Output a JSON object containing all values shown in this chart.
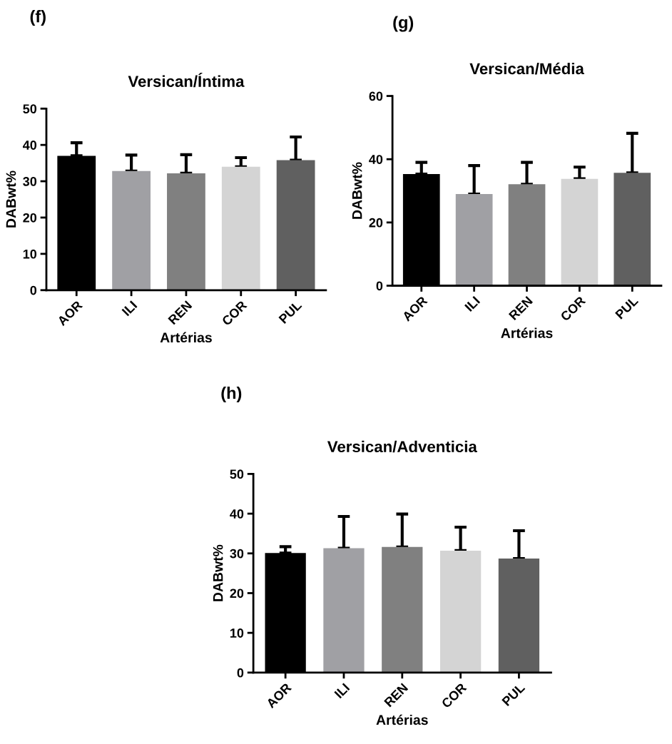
{
  "chart_data": [
    {
      "type": "bar",
      "title": "Versican/Íntima",
      "xlabel": "Artérias",
      "ylabel": "DABwt%",
      "annotations": [
        "(f)"
      ],
      "categories": [
        "AOR",
        "ILI",
        "REN",
        "COR",
        "PUL"
      ],
      "values": [
        37,
        32.8,
        32.2,
        34,
        35.8
      ],
      "colors": [
        "#000000",
        "#a0a0a4",
        "#808080",
        "#d4d4d4",
        "#606060"
      ],
      "errors": [
        [
          37,
          40.6
        ],
        [
          32.8,
          37.2
        ],
        [
          32.2,
          37.3
        ],
        [
          34,
          36.5
        ],
        [
          35.8,
          42.2
        ]
      ],
      "ylim": [
        0,
        50
      ],
      "yticks": [
        0,
        10,
        20,
        30,
        40,
        50
      ],
      "grid": false,
      "legend": false
    },
    {
      "type": "bar",
      "title": "Versican/Média",
      "xlabel": "Artérias",
      "ylabel": "DABwt%",
      "annotations": [
        "(g)"
      ],
      "categories": [
        "AOR",
        "ILI",
        "REN",
        "COR",
        "PUL"
      ],
      "values": [
        35.3,
        29,
        32.1,
        33.8,
        35.7
      ],
      "colors": [
        "#000000",
        "#a0a0a4",
        "#808080",
        "#d4d4d4",
        "#606060"
      ],
      "errors": [
        [
          35.3,
          39
        ],
        [
          29,
          38
        ],
        [
          32.1,
          39
        ],
        [
          33.8,
          37.5
        ],
        [
          35.7,
          48.2
        ]
      ],
      "ylim": [
        0,
        60
      ],
      "yticks": [
        0,
        20,
        40,
        60
      ],
      "grid": false,
      "legend": false
    },
    {
      "type": "bar",
      "title": "Versican/Adventicia",
      "xlabel": "Artérias",
      "ylabel": "DABwt%",
      "annotations": [
        "(h)"
      ],
      "categories": [
        "AOR",
        "ILI",
        "REN",
        "COR",
        "PUL"
      ],
      "values": [
        30.1,
        31.3,
        31.6,
        30.7,
        28.7
      ],
      "colors": [
        "#000000",
        "#a0a0a4",
        "#808080",
        "#d4d4d4",
        "#606060"
      ],
      "errors": [
        [
          30.1,
          31.7
        ],
        [
          31.3,
          39.3
        ],
        [
          31.6,
          39.9
        ],
        [
          30.7,
          36.6
        ],
        [
          28.7,
          35.7
        ]
      ],
      "ylim": [
        0,
        50
      ],
      "yticks": [
        0,
        10,
        20,
        30,
        40,
        50
      ],
      "grid": false,
      "legend": false
    }
  ]
}
